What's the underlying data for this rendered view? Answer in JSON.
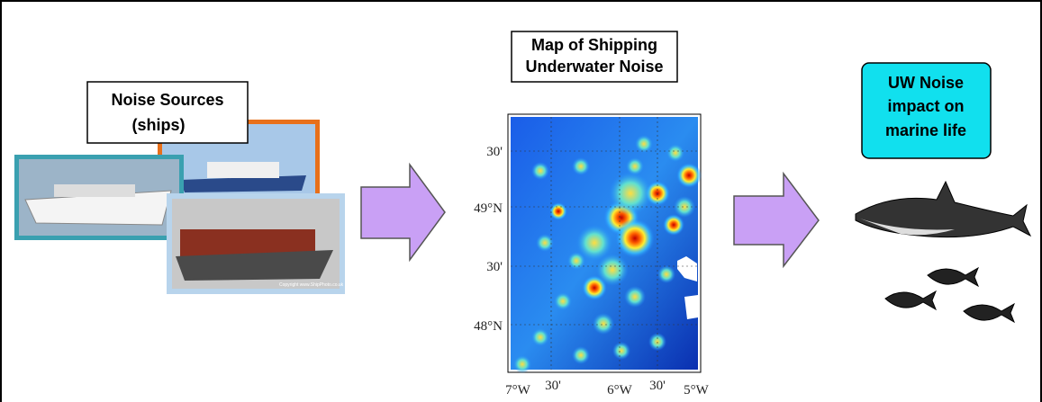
{
  "sources_box": {
    "lines": [
      "Noise Sources",
      "(ships)"
    ]
  },
  "photo_credit": "Copyright www.ShipPhoto.co.uk",
  "map_box": {
    "lines": [
      "Map of Shipping",
      "Underwater Noise"
    ]
  },
  "map": {
    "lat_labels": [
      "30'",
      "49°N",
      "30'",
      "48°N"
    ],
    "lon_labels": [
      "7°W",
      "30'",
      "6°W",
      "30'",
      "5°W"
    ]
  },
  "impact_box": {
    "lines": [
      "UW Noise",
      "impact on",
      "marine life"
    ]
  }
}
